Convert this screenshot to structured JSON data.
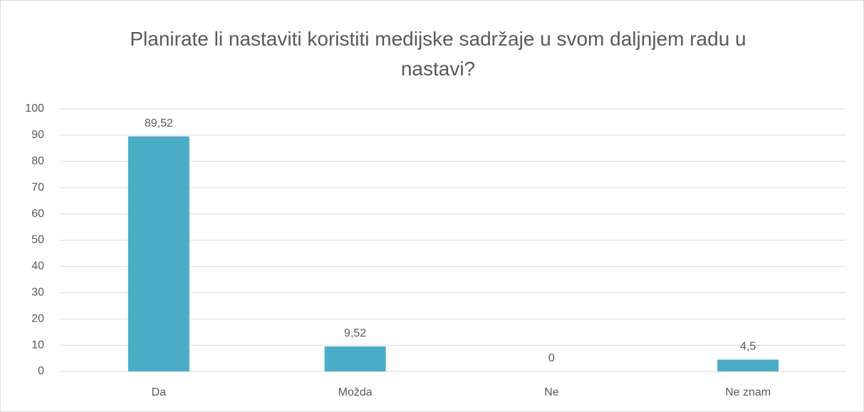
{
  "chart_data": {
    "type": "bar",
    "title": "Planirate li nastaviti koristiti medijske sadržaje u svom daljnjem radu u nastavi?",
    "categories": [
      "Da",
      "Možda",
      "Ne",
      "Ne znam"
    ],
    "values": [
      89.52,
      9.52,
      0,
      4.5
    ],
    "value_labels": [
      "89,52",
      "9,52",
      "0",
      "4,5"
    ],
    "color": "#4bacc6",
    "ylim": [
      0,
      100
    ],
    "yticks": [
      0,
      10,
      20,
      30,
      40,
      50,
      60,
      70,
      80,
      90,
      100
    ],
    "grid": true
  }
}
